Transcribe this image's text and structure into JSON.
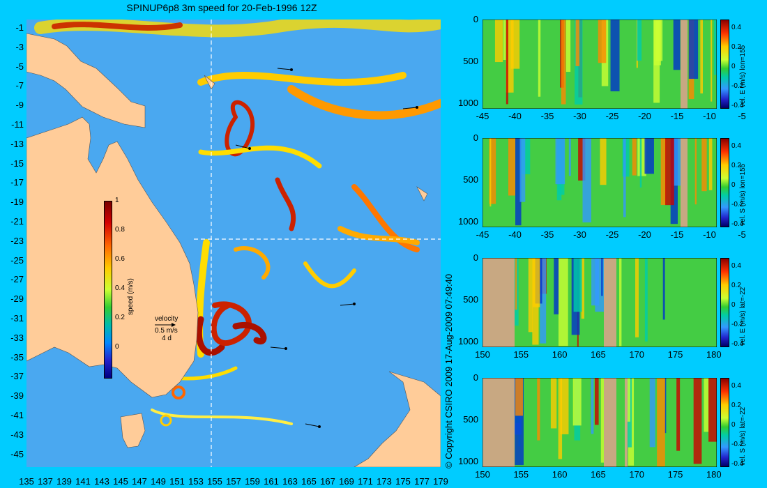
{
  "title": "SPINUP6p8 3m speed for 20-Feb-1996 12Z",
  "copyright": "© Copyright CSIRO 2009   17-Aug-2009 07:49:40",
  "map": {
    "lat_ticks": [
      "-1",
      "-3",
      "-5",
      "-7",
      "-9",
      "-11",
      "-13",
      "-15",
      "-17",
      "-19",
      "-21",
      "-23",
      "-25",
      "-27",
      "-29",
      "-31",
      "-33",
      "-35",
      "-37",
      "-39",
      "-41",
      "-43",
      "-45"
    ],
    "lon_ticks": [
      "135",
      "137",
      "139",
      "141",
      "143",
      "145",
      "147",
      "149",
      "151",
      "153",
      "155",
      "157",
      "159",
      "161",
      "163",
      "165",
      "167",
      "169",
      "171",
      "173",
      "175",
      "177",
      "179"
    ],
    "colorbar": {
      "label": "speed (m/s)",
      "ticks": [
        "1",
        "0.8",
        "0.6",
        "0.4",
        "0.2",
        "0"
      ]
    },
    "velocity_legend": {
      "title": "velocity",
      "speed": "0.5 m/s",
      "days": "4 d"
    },
    "section_lon": 155,
    "section_lat": -22,
    "colors": {
      "land": "#ffcc99",
      "ocean_low": "#3399ff",
      "ocean_mid": "#33cc33",
      "ocean_high": "#cc2200"
    }
  },
  "panels": [
    {
      "label": "vel. E (m/s) lon=155",
      "x_ticks": [
        "-45",
        "-40",
        "-35",
        "-30",
        "-25",
        "-20",
        "-15",
        "-10",
        "-5"
      ],
      "y_ticks": [
        "0",
        "500",
        "1000"
      ],
      "cb_ticks": [
        "0.4",
        "0.2",
        "0",
        "-0.2",
        "-0.4"
      ]
    },
    {
      "label": "vel. S (m/s) lon=155",
      "x_ticks": [
        "-45",
        "-40",
        "-35",
        "-30",
        "-25",
        "-20",
        "-15",
        "-10",
        "-5"
      ],
      "y_ticks": [
        "0",
        "500",
        "1000"
      ],
      "cb_ticks": [
        "0.4",
        "0.2",
        "0",
        "-0.2",
        "-0.4"
      ]
    },
    {
      "label": "vel. E (m/s) lat=-22",
      "x_ticks": [
        "150",
        "155",
        "160",
        "165",
        "170",
        "175",
        "180"
      ],
      "y_ticks": [
        "0",
        "500",
        "1000"
      ],
      "cb_ticks": [
        "0.4",
        "0.2",
        "0",
        "-0.2",
        "-0.4"
      ]
    },
    {
      "label": "vel. S (m/s) lat=-22",
      "x_ticks": [
        "150",
        "155",
        "160",
        "165",
        "170",
        "175",
        "180"
      ],
      "y_ticks": [
        "0",
        "500",
        "1000"
      ],
      "cb_ticks": [
        "0.4",
        "0.2",
        "0",
        "-0.2",
        "-0.4"
      ]
    }
  ]
}
